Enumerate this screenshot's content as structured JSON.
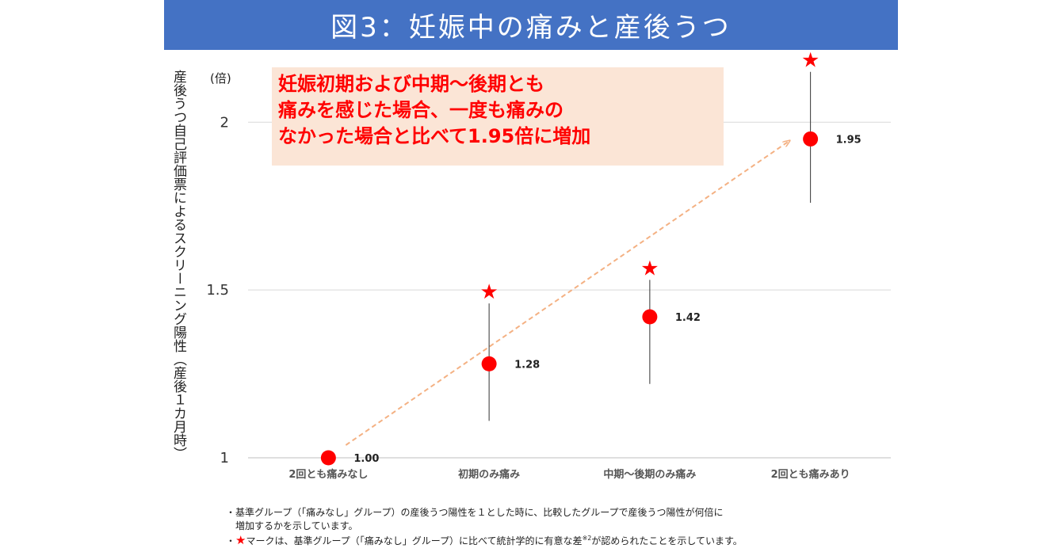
{
  "title": "図3：妊娠中の痛みと産後うつ",
  "y_axis_label": "産後うつ自己評価票によるスクリーニング陽性（産後１カ月時）",
  "y_unit": "(倍)",
  "callout_lines": [
    "妊娠初期および中期～後期とも",
    "痛みを感じた場合、一度も痛みの",
    "なかった場合と比べて1.95倍に増加"
  ],
  "notes": {
    "line1": "・基準グループ（「痛みなし」グループ）の産後うつ陽性を１とした時に、比較したグループで産後うつ陽性が何倍に",
    "line2": "増加するかを示しています。",
    "line3_prefix": "・",
    "line3_star": "★",
    "line3_text": "マークは、基準グループ（「痛みなし」グループ）に比べて統計学的に有意な差",
    "line3_sup": "※2",
    "line3_suffix": "が認められたことを示しています。"
  },
  "colors": {
    "banner": "#4472c4",
    "marker": "#ff0000",
    "arrow": "#f4b183",
    "callout_bg": "#fbe5d6"
  },
  "chart_data": {
    "type": "scatter",
    "categories": [
      "2回とも痛みなし",
      "初期のみ痛み",
      "中期～後期のみ痛み",
      "2回とも痛みあり"
    ],
    "values": [
      1.0,
      1.28,
      1.42,
      1.95
    ],
    "value_labels": [
      "1.00",
      "1.28",
      "1.42",
      "1.95"
    ],
    "ci_low": [
      null,
      1.11,
      1.22,
      1.76
    ],
    "ci_high": [
      null,
      1.46,
      1.53,
      2.15
    ],
    "significant": [
      false,
      true,
      true,
      true
    ],
    "significance_marker": "★",
    "yticks": [
      1,
      1.5,
      2
    ],
    "ytick_labels": [
      "1",
      "1.5",
      "2"
    ],
    "ylim": [
      1,
      2.18
    ],
    "grid": true,
    "arrow": {
      "from_category": 0,
      "to_category": 3
    }
  }
}
